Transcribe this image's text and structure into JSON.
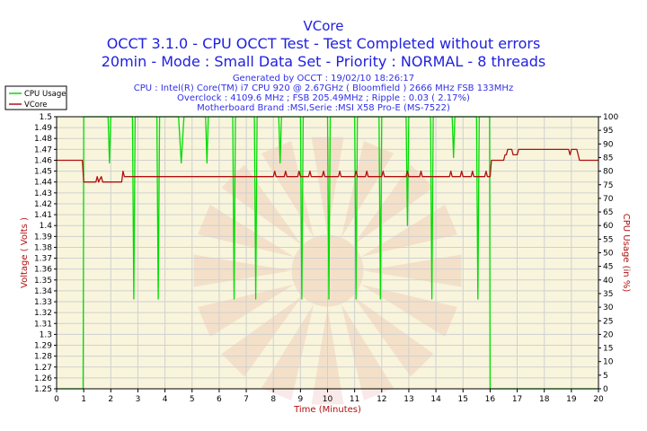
{
  "chart_data": {
    "type": "line",
    "title": "VCore",
    "subtitle_lines": [
      "OCCT 3.1.0 - CPU OCCT Test - Test Completed without errors",
      "20min - Mode : Small Data Set - Priority : NORMAL - 8 threads"
    ],
    "info_lines": [
      "Generated by OCCT : 19/02/10 18:26:17",
      "CPU : Intel(R) Core(TM) i7 CPU 920 @ 2.67GHz ( Bloomfield ) 2666 MHz FSB 133MHz",
      "Overclock : 4109.6 MHz ; FSB 205.49MHz ; Ripple : 0.03 ( 2.17%)",
      "Motherboard Brand :MSI,Serie :MSI X58 Pro-E (MS-7522)"
    ],
    "xlabel": "Time (Minutes)",
    "ylabel": "Voltage ( Volts )",
    "ylabel_right": "CPU Usage (in %)",
    "xlim": [
      0,
      20
    ],
    "ylim": [
      1.25,
      1.5
    ],
    "ylim_right": [
      0,
      100
    ],
    "x_ticks": [
      "0",
      "1",
      "2",
      "3",
      "4",
      "5",
      "6",
      "7",
      "8",
      "9",
      "10",
      "11",
      "12",
      "13",
      "14",
      "15",
      "16",
      "17",
      "18",
      "19",
      "20"
    ],
    "y_ticks": [
      "1.25",
      "1.26",
      "1.27",
      "1.28",
      "1.29",
      "1.3",
      "1.31",
      "1.32",
      "1.33",
      "1.34",
      "1.35",
      "1.36",
      "1.37",
      "1.38",
      "1.39",
      "1.4",
      "1.41",
      "1.42",
      "1.43",
      "1.44",
      "1.45",
      "1.46",
      "1.47",
      "1.48",
      "1.49",
      "1.5"
    ],
    "y_ticks_right": [
      "0",
      "5",
      "10",
      "15",
      "20",
      "25",
      "30",
      "35",
      "40",
      "45",
      "50",
      "55",
      "60",
      "65",
      "70",
      "75",
      "80",
      "85",
      "90",
      "95",
      "100"
    ],
    "grid": true,
    "legend_position": "top-left",
    "series": [
      {
        "name": "CPU Usage",
        "axis": "right",
        "color": "#00dd00",
        "points": [
          [
            0,
            0
          ],
          [
            0.98,
            0
          ],
          [
            1.0,
            100
          ],
          [
            1.9,
            100
          ],
          [
            1.95,
            83
          ],
          [
            2.0,
            100
          ],
          [
            2.8,
            100
          ],
          [
            2.85,
            33
          ],
          [
            2.9,
            100
          ],
          [
            3.7,
            100
          ],
          [
            3.75,
            33
          ],
          [
            3.8,
            100
          ],
          [
            4.5,
            100
          ],
          [
            4.6,
            83
          ],
          [
            4.7,
            100
          ],
          [
            5.5,
            100
          ],
          [
            5.55,
            83
          ],
          [
            5.6,
            100
          ],
          [
            6.5,
            100
          ],
          [
            6.55,
            33
          ],
          [
            6.6,
            100
          ],
          [
            7.3,
            100
          ],
          [
            7.35,
            33
          ],
          [
            7.4,
            100
          ],
          [
            8.2,
            100
          ],
          [
            8.25,
            83
          ],
          [
            8.3,
            100
          ],
          [
            9.0,
            100
          ],
          [
            9.05,
            33
          ],
          [
            9.1,
            100
          ],
          [
            10.0,
            100
          ],
          [
            10.05,
            33
          ],
          [
            10.1,
            100
          ],
          [
            11.0,
            100
          ],
          [
            11.05,
            33
          ],
          [
            11.1,
            100
          ],
          [
            11.9,
            100
          ],
          [
            11.95,
            33
          ],
          [
            12.0,
            100
          ],
          [
            12.9,
            100
          ],
          [
            12.95,
            60
          ],
          [
            13.0,
            100
          ],
          [
            13.8,
            100
          ],
          [
            13.85,
            33
          ],
          [
            13.9,
            100
          ],
          [
            14.6,
            100
          ],
          [
            14.65,
            85
          ],
          [
            14.7,
            100
          ],
          [
            15.5,
            100
          ],
          [
            15.55,
            33
          ],
          [
            15.6,
            100
          ],
          [
            15.98,
            100
          ],
          [
            16.0,
            0
          ],
          [
            20,
            0
          ]
        ]
      },
      {
        "name": "VCore",
        "axis": "left",
        "color": "#b01010",
        "points": [
          [
            0,
            1.46
          ],
          [
            0.95,
            1.46
          ],
          [
            1.0,
            1.44
          ],
          [
            1.45,
            1.44
          ],
          [
            1.5,
            1.445
          ],
          [
            1.55,
            1.44
          ],
          [
            1.65,
            1.445
          ],
          [
            1.7,
            1.44
          ],
          [
            2.4,
            1.44
          ],
          [
            2.45,
            1.45
          ],
          [
            2.5,
            1.445
          ],
          [
            2.55,
            1.445
          ],
          [
            8.0,
            1.445
          ],
          [
            8.05,
            1.45
          ],
          [
            8.1,
            1.445
          ],
          [
            8.4,
            1.445
          ],
          [
            8.45,
            1.45
          ],
          [
            8.5,
            1.445
          ],
          [
            8.9,
            1.445
          ],
          [
            8.95,
            1.45
          ],
          [
            9.0,
            1.445
          ],
          [
            9.3,
            1.445
          ],
          [
            9.35,
            1.45
          ],
          [
            9.4,
            1.445
          ],
          [
            9.8,
            1.445
          ],
          [
            9.85,
            1.45
          ],
          [
            9.9,
            1.445
          ],
          [
            10.4,
            1.445
          ],
          [
            10.45,
            1.45
          ],
          [
            10.5,
            1.445
          ],
          [
            11.0,
            1.445
          ],
          [
            11.05,
            1.45
          ],
          [
            11.1,
            1.445
          ],
          [
            11.4,
            1.445
          ],
          [
            11.45,
            1.45
          ],
          [
            11.5,
            1.445
          ],
          [
            12.0,
            1.445
          ],
          [
            12.05,
            1.45
          ],
          [
            12.1,
            1.445
          ],
          [
            12.9,
            1.445
          ],
          [
            12.95,
            1.45
          ],
          [
            13.0,
            1.445
          ],
          [
            13.4,
            1.445
          ],
          [
            13.45,
            1.45
          ],
          [
            13.5,
            1.445
          ],
          [
            14.5,
            1.445
          ],
          [
            14.55,
            1.45
          ],
          [
            14.6,
            1.445
          ],
          [
            14.9,
            1.445
          ],
          [
            14.95,
            1.45
          ],
          [
            15.0,
            1.445
          ],
          [
            15.3,
            1.445
          ],
          [
            15.35,
            1.45
          ],
          [
            15.4,
            1.445
          ],
          [
            15.8,
            1.445
          ],
          [
            15.85,
            1.45
          ],
          [
            15.9,
            1.445
          ],
          [
            16.0,
            1.445
          ],
          [
            16.05,
            1.46
          ],
          [
            16.5,
            1.46
          ],
          [
            16.55,
            1.465
          ],
          [
            16.6,
            1.465
          ],
          [
            16.65,
            1.47
          ],
          [
            16.8,
            1.47
          ],
          [
            16.85,
            1.465
          ],
          [
            17.0,
            1.465
          ],
          [
            17.05,
            1.47
          ],
          [
            18.9,
            1.47
          ],
          [
            18.95,
            1.465
          ],
          [
            19.0,
            1.47
          ],
          [
            19.2,
            1.47
          ],
          [
            19.25,
            1.465
          ],
          [
            19.3,
            1.46
          ],
          [
            20,
            1.46
          ]
        ]
      }
    ]
  }
}
